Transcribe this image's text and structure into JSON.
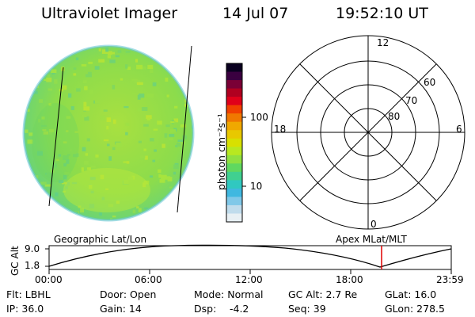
{
  "header": {
    "title": "Ultraviolet Imager",
    "date": "14 Jul 07",
    "time": "19:52:10 UT"
  },
  "colorbar": {
    "unit_label": "photon cm⁻²s⁻¹",
    "ticks": [
      "100",
      "10"
    ],
    "scale": "log",
    "colors_top_to_bottom": [
      "#0a0020",
      "#3a0040",
      "#7a0036",
      "#b00020",
      "#e0001a",
      "#f04000",
      "#f07800",
      "#f0a800",
      "#e8c800",
      "#d8e000",
      "#b8e820",
      "#90e040",
      "#60d860",
      "#40d090",
      "#30c8c0",
      "#40b8e0",
      "#80c8e8",
      "#c0dcec",
      "#e8f0f4"
    ]
  },
  "polar_grid": {
    "labels": {
      "top": "12",
      "right": "6",
      "bottom": "0",
      "left": "18"
    },
    "ring_labels": [
      "60",
      "70",
      "80"
    ]
  },
  "altitude_panel": {
    "left_label": "Geographic Lat/Lon",
    "right_label": "Apex MLat/MLT",
    "axis_title": "GC Alt",
    "y_ticks": [
      "9.0",
      "1.8"
    ],
    "x_ticks": [
      "00:00",
      "06:00",
      "12:00",
      "18:00",
      "23:59"
    ],
    "marker_time": "19:52",
    "marker_color": "#e00000"
  },
  "info": {
    "row1": {
      "flt": "Flt: LBHL",
      "door": "Door: Open",
      "mode": "Mode: Normal",
      "gc_alt": "GC Alt: 2.7 Re",
      "glat": "GLat:  16.0"
    },
    "row2": {
      "ip": "IP: 36.0",
      "gain": "Gain: 14",
      "dsp_label": "Dsp:",
      "dsp_value": "-4.2",
      "seq": "Seq: 39",
      "glon": "GLon: 278.5"
    }
  }
}
